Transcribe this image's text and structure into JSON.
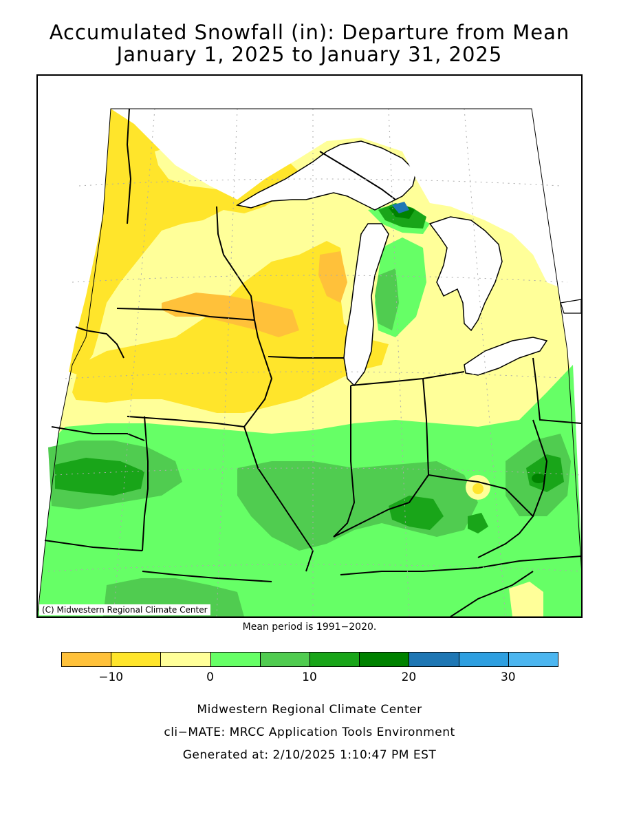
{
  "title": {
    "line1": "Accumulated Snowfall (in): Departure from Mean",
    "line2": "January 1, 2025 to January 31, 2025"
  },
  "map": {
    "credit": "(C) Midwestern Regional Climate Center",
    "region": "Midwest United States",
    "lake_color": "#ffffff"
  },
  "mean_period": "Mean period is 1991−2020.",
  "legend": {
    "bins": [
      {
        "range": [
          -15,
          -10
        ],
        "color": "#ffc13a"
      },
      {
        "range": [
          -10,
          -5
        ],
        "color": "#ffe52b"
      },
      {
        "range": [
          -5,
          0
        ],
        "color": "#ffff99"
      },
      {
        "range": [
          0,
          5
        ],
        "color": "#66ff66"
      },
      {
        "range": [
          5,
          10
        ],
        "color": "#50cc50"
      },
      {
        "range": [
          10,
          15
        ],
        "color": "#19a519"
      },
      {
        "range": [
          15,
          20
        ],
        "color": "#008200"
      },
      {
        "range": [
          20,
          25
        ],
        "color": "#1f77b4"
      },
      {
        "range": [
          25,
          30
        ],
        "color": "#2e9fe0"
      },
      {
        "range": [
          30,
          35
        ],
        "color": "#4cb6f0"
      }
    ],
    "tick_labels": [
      "−10",
      "0",
      "10",
      "20",
      "30"
    ]
  },
  "footer": {
    "line1": "Midwestern Regional Climate Center",
    "line2": "cli−MATE: MRCC Application Tools Environment",
    "line3": "Generated at: 2/10/2025 1:10:47 PM EST"
  }
}
